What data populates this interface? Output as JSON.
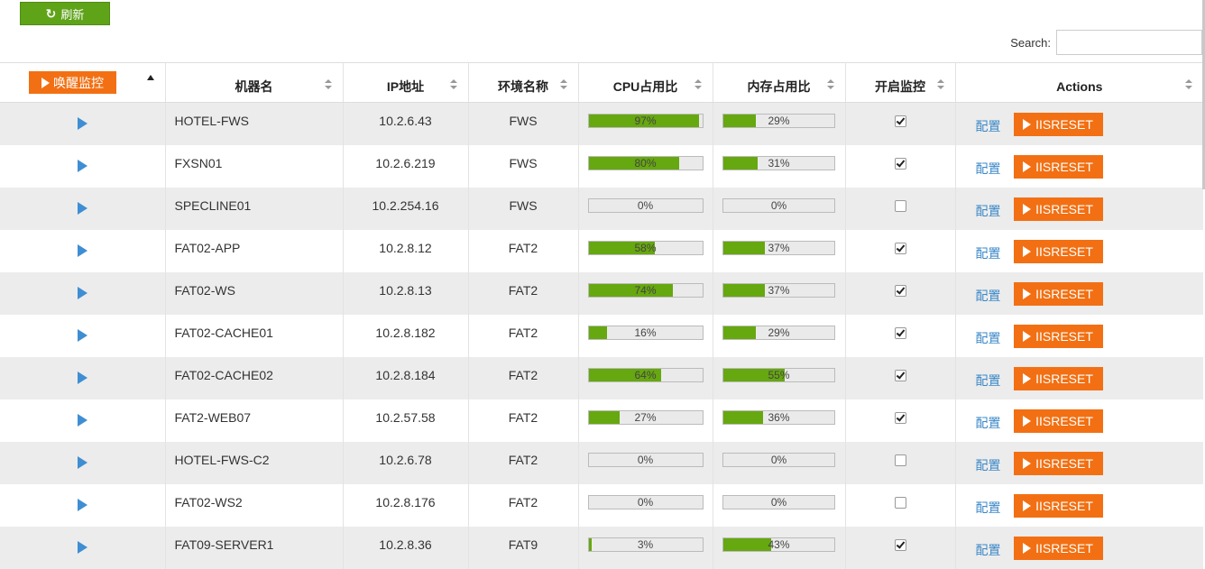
{
  "toolbar": {
    "refresh_label": "刷新",
    "refresh_icon": "refresh-icon"
  },
  "search": {
    "label": "Search:",
    "value": ""
  },
  "table": {
    "wake_label": "唤醒监控",
    "headers": [
      "机器名",
      "IP地址",
      "环境名称",
      "CPU占用比",
      "内存占用比",
      "开启监控",
      "Actions"
    ],
    "config_label": "配置",
    "reset_label": "IISRESET",
    "colors": {
      "bar": "#66a80f",
      "button": "#f27013",
      "link": "#3a87c7",
      "play": "#3f8ed3"
    },
    "rows": [
      {
        "name": "HOTEL-FWS",
        "ip": "10.2.6.43",
        "env": "FWS",
        "cpu": "97%",
        "mem": "29%",
        "monitor": true
      },
      {
        "name": "FXSN01",
        "ip": "10.2.6.219",
        "env": "FWS",
        "cpu": "80%",
        "mem": "31%",
        "monitor": true
      },
      {
        "name": "SPECLINE01",
        "ip": "10.2.254.16",
        "env": "FWS",
        "cpu": "0%",
        "mem": "0%",
        "monitor": false
      },
      {
        "name": "FAT02-APP",
        "ip": "10.2.8.12",
        "env": "FAT2",
        "cpu": "58%",
        "mem": "37%",
        "monitor": true
      },
      {
        "name": "FAT02-WS",
        "ip": "10.2.8.13",
        "env": "FAT2",
        "cpu": "74%",
        "mem": "37%",
        "monitor": true
      },
      {
        "name": "FAT02-CACHE01",
        "ip": "10.2.8.182",
        "env": "FAT2",
        "cpu": "16%",
        "mem": "29%",
        "monitor": true
      },
      {
        "name": "FAT02-CACHE02",
        "ip": "10.2.8.184",
        "env": "FAT2",
        "cpu": "64%",
        "mem": "55%",
        "monitor": true
      },
      {
        "name": "FAT2-WEB07",
        "ip": "10.2.57.58",
        "env": "FAT2",
        "cpu": "27%",
        "mem": "36%",
        "monitor": true
      },
      {
        "name": "HOTEL-FWS-C2",
        "ip": "10.2.6.78",
        "env": "FAT2",
        "cpu": "0%",
        "mem": "0%",
        "monitor": false
      },
      {
        "name": "FAT02-WS2",
        "ip": "10.2.8.176",
        "env": "FAT2",
        "cpu": "0%",
        "mem": "0%",
        "monitor": false
      },
      {
        "name": "FAT09-SERVER1",
        "ip": "10.2.8.36",
        "env": "FAT9",
        "cpu": "3%",
        "mem": "43%",
        "monitor": true
      }
    ]
  }
}
